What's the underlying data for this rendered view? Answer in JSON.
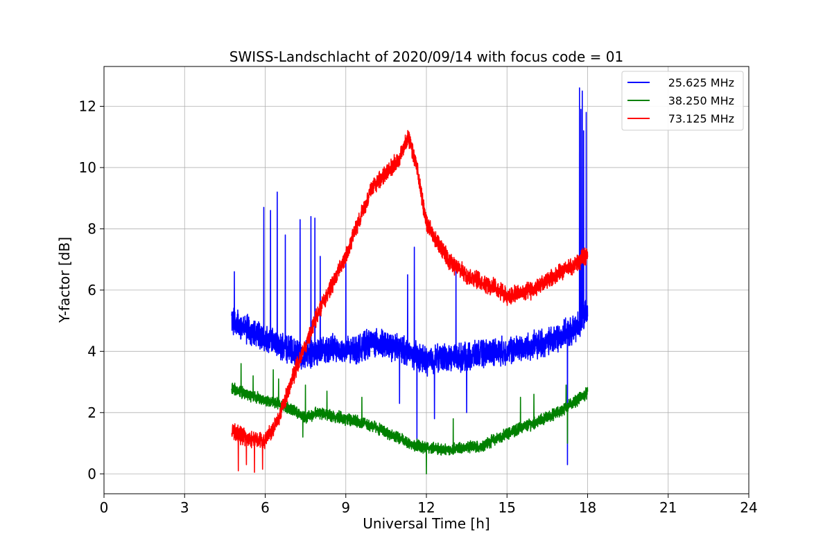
{
  "chart_data": {
    "type": "line",
    "title": "SWISS-Landschlacht of 2020/09/14 with focus code = 01",
    "xlabel": "Universal Time [h]",
    "ylabel": "Y-factor [dB]",
    "xlim": [
      0,
      24
    ],
    "ylim": [
      -0.65,
      13.3
    ],
    "xticks": [
      0,
      3,
      6,
      9,
      12,
      15,
      18,
      21,
      24
    ],
    "yticks": [
      0,
      2,
      4,
      6,
      8,
      10,
      12
    ],
    "xtick_labels": [
      "0",
      "3",
      "6",
      "9",
      "12",
      "15",
      "18",
      "21",
      "24"
    ],
    "ytick_labels": [
      "0",
      "2",
      "4",
      "6",
      "8",
      "10",
      "12"
    ],
    "grid": true,
    "legend_position": "top-right",
    "series": [
      {
        "name": "25.625 MHz",
        "color": "#0000ff",
        "noise": 0.35,
        "x": [
          4.75,
          5.0,
          5.5,
          6.0,
          6.5,
          7.0,
          7.5,
          8.0,
          8.5,
          9.0,
          9.5,
          10.0,
          10.5,
          11.0,
          11.5,
          12.0,
          12.5,
          13.0,
          13.5,
          14.0,
          14.5,
          15.0,
          15.5,
          16.0,
          16.5,
          17.0,
          17.5,
          18.0
        ],
        "y": [
          5.0,
          4.9,
          4.6,
          4.4,
          4.2,
          4.0,
          3.9,
          4.0,
          4.1,
          4.0,
          4.1,
          4.3,
          4.2,
          4.1,
          3.9,
          3.7,
          3.8,
          3.8,
          3.8,
          3.9,
          4.0,
          4.0,
          4.1,
          4.2,
          4.3,
          4.5,
          4.7,
          5.3
        ],
        "spikes": [
          [
            4.85,
            6.6
          ],
          [
            5.95,
            8.7
          ],
          [
            6.2,
            8.6
          ],
          [
            6.45,
            9.2
          ],
          [
            6.75,
            7.8
          ],
          [
            7.3,
            8.3
          ],
          [
            7.7,
            8.4
          ],
          [
            7.85,
            8.35
          ],
          [
            8.05,
            7.1
          ],
          [
            9.0,
            6.9
          ],
          [
            11.55,
            7.4
          ],
          [
            11.3,
            6.5
          ],
          [
            13.1,
            6.7
          ],
          [
            17.7,
            12.6
          ],
          [
            17.75,
            11.9
          ],
          [
            17.8,
            12.5
          ],
          [
            17.85,
            11.2
          ],
          [
            17.95,
            11.8
          ],
          [
            17.25,
            0.3
          ],
          [
            11.65,
            1.1
          ],
          [
            11.0,
            2.3
          ],
          [
            13.5,
            2.0
          ],
          [
            12.3,
            1.8
          ]
        ]
      },
      {
        "name": "38.250 MHz",
        "color": "#008000",
        "noise": 0.15,
        "x": [
          4.75,
          5.0,
          5.5,
          6.0,
          6.5,
          7.0,
          7.5,
          8.0,
          8.5,
          9.0,
          9.5,
          10.0,
          10.5,
          11.0,
          11.5,
          12.0,
          12.5,
          13.0,
          13.5,
          14.0,
          14.5,
          15.0,
          15.5,
          16.0,
          16.5,
          17.0,
          17.5,
          18.0
        ],
        "y": [
          2.8,
          2.7,
          2.55,
          2.4,
          2.3,
          2.1,
          1.85,
          2.0,
          1.9,
          1.8,
          1.7,
          1.55,
          1.35,
          1.15,
          0.95,
          0.85,
          0.8,
          0.8,
          0.85,
          0.9,
          1.1,
          1.3,
          1.5,
          1.65,
          1.85,
          2.05,
          2.35,
          2.65
        ],
        "spikes": [
          [
            5.1,
            3.6
          ],
          [
            5.55,
            3.2
          ],
          [
            6.3,
            3.4
          ],
          [
            6.5,
            3.1
          ],
          [
            7.5,
            2.9
          ],
          [
            8.3,
            2.7
          ],
          [
            9.6,
            2.5
          ],
          [
            13.0,
            1.8
          ],
          [
            15.5,
            2.5
          ],
          [
            16.0,
            2.6
          ],
          [
            17.2,
            2.9
          ],
          [
            17.25,
            1.0
          ],
          [
            12.0,
            0.0
          ],
          [
            7.4,
            1.2
          ]
        ]
      },
      {
        "name": "73.125 MHz",
        "color": "#ff0000",
        "noise": 0.22,
        "x": [
          4.75,
          5.0,
          5.5,
          6.0,
          6.5,
          7.0,
          7.5,
          8.0,
          8.5,
          9.0,
          9.5,
          10.0,
          10.5,
          11.0,
          11.3,
          11.6,
          12.0,
          12.5,
          13.0,
          13.5,
          14.0,
          14.5,
          15.0,
          15.5,
          16.0,
          16.5,
          17.0,
          17.5,
          18.0
        ],
        "y": [
          1.4,
          1.3,
          1.1,
          1.1,
          1.8,
          3.1,
          4.2,
          5.3,
          6.2,
          7.1,
          8.3,
          9.4,
          9.8,
          10.3,
          11.0,
          10.2,
          8.2,
          7.4,
          6.8,
          6.5,
          6.3,
          6.1,
          5.8,
          5.9,
          6.0,
          6.3,
          6.6,
          6.8,
          7.2
        ],
        "spikes": [
          [
            5.0,
            0.1
          ],
          [
            5.6,
            0.05
          ],
          [
            5.9,
            0.15
          ],
          [
            5.3,
            0.3
          ]
        ]
      }
    ]
  }
}
